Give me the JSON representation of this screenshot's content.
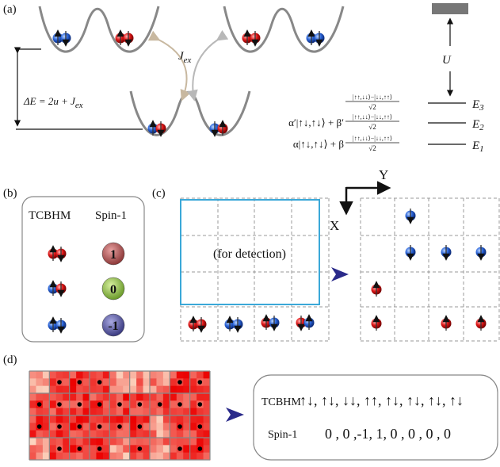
{
  "panel_a": {
    "label": "(a)",
    "coupling": {
      "main": "J",
      "sub": "ex"
    },
    "interaction": "U",
    "gap": {
      "main": "ΔE = 2u + J",
      "sub": "ex"
    },
    "levels": [
      {
        "numerator": "|↑↑,↓↓⟩−|↓↓,↑↑⟩",
        "denominator": "√2",
        "energy": {
          "main": "E",
          "sub": "3"
        }
      },
      {
        "prefix": "α′|↑↓,↑↓⟩ + β′",
        "numerator": "|↑↑,↓↓⟩−|↓↓,↑↑⟩",
        "denominator": "√2",
        "energy": {
          "main": "E",
          "sub": "2"
        }
      },
      {
        "prefix": "α|↑↓,↑↓⟩ + β",
        "numerator": "|↑↑,↓↓⟩−|↓↓,↑↑⟩",
        "denominator": "√2",
        "energy": {
          "main": "E",
          "sub": "1"
        }
      }
    ]
  },
  "panel_b": {
    "label": "(b)",
    "left_header": "TCBHM",
    "right_header": "Spin-1",
    "spins": [
      "1",
      "0",
      "-1"
    ]
  },
  "panel_c": {
    "label": "(c)",
    "axis_y": "Y",
    "axis_x": "X",
    "detection_label": "(for detection)"
  },
  "panel_d": {
    "label": "(d)",
    "rows": [
      {
        "name": "TCBHM",
        "content": "↑↓, ↑↓, ↓↓, ↑↑, ↑↓, ↑↓, ↑↓, ↑↓"
      },
      {
        "name": "Spin-1",
        "content": "0 , 0 ,-1, 1, 0 , 0 , 0 , 0"
      }
    ]
  }
}
